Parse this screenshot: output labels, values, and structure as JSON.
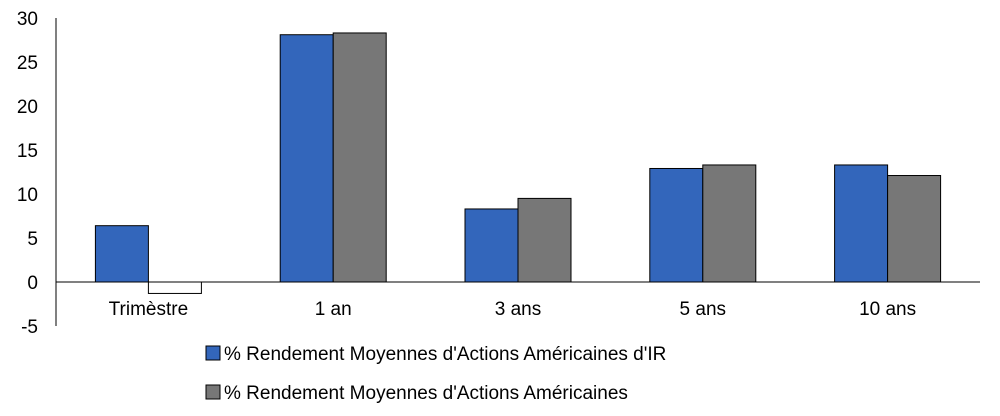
{
  "chart_data": {
    "type": "bar",
    "title": "",
    "xlabel": "",
    "ylabel": "",
    "categories": [
      "Trimèstre",
      "1 an",
      "3 ans",
      "5 ans",
      "10 ans"
    ],
    "series": [
      {
        "name": "% Rendement Moyennes d'Actions Américaines d'IR",
        "color": "#3366bb",
        "values": [
          6.4,
          28.1,
          8.3,
          12.9,
          13.3
        ]
      },
      {
        "name": "% Rendement Moyennes d'Actions Américaines",
        "color": "#777777",
        "values": [
          -1.3,
          28.3,
          9.5,
          13.3,
          12.1
        ]
      }
    ],
    "ylim": [
      -5,
      30
    ],
    "yticks": [
      "30",
      "25",
      "20",
      "15",
      "10",
      "5",
      "0",
      "-5"
    ],
    "grid": false,
    "legend_position": "bottom"
  }
}
